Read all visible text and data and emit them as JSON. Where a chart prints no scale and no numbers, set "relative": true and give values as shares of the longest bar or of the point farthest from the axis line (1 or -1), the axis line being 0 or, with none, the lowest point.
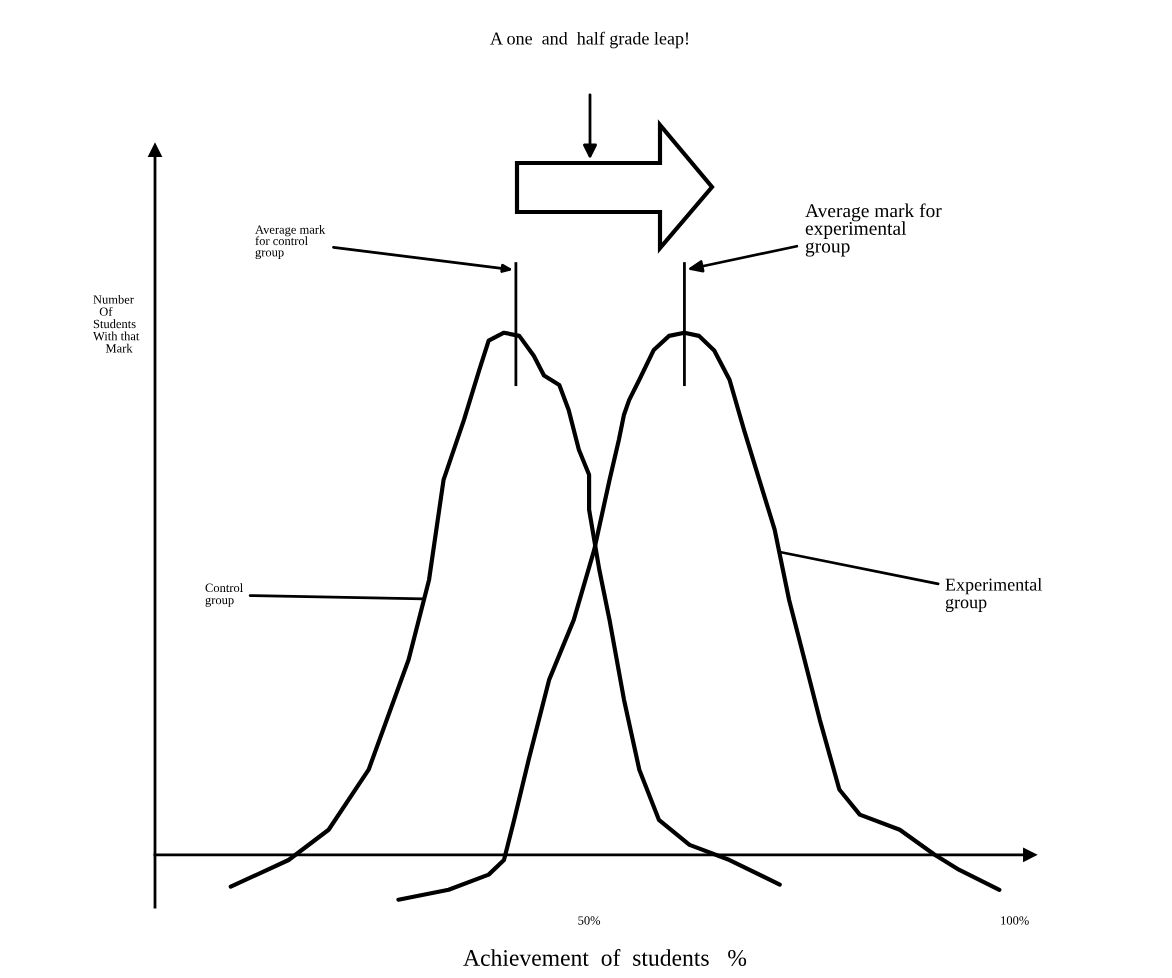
{
  "chart_data": {
    "type": "line",
    "relative": true,
    "title": "A one  and  half grade leap!",
    "xlabel": "Achievement  of  students   %",
    "ylabel": "Number\n  Of\nStudents\nWith that\n    Mark",
    "xlim": [
      -1,
      101.8
    ],
    "xticks": [
      {
        "value": 50,
        "label": "50%"
      },
      {
        "value": 100,
        "label": "100%"
      }
    ],
    "series": [
      {
        "color": "#000000",
        "x": [
          7.9,
          14.7,
          19.4,
          24.1,
          28.8,
          31.2,
          32.9,
          35.3,
          37.1,
          38.2,
          40.0,
          41.8,
          43.5,
          44.7,
          46.5,
          47.6,
          48.8,
          50.0,
          50.0,
          51.2,
          52.4,
          54.1,
          55.9,
          58.2,
          61.8,
          66.5,
          72.4
        ],
        "values": [
          -0.061,
          -0.01,
          0.048,
          0.163,
          0.374,
          0.527,
          0.718,
          0.833,
          0.929,
          0.985,
          1.0,
          0.994,
          0.956,
          0.918,
          0.9,
          0.852,
          0.776,
          0.728,
          0.661,
          0.546,
          0.45,
          0.297,
          0.163,
          0.067,
          0.019,
          -0.01,
          -0.057
        ]
      },
      {
        "color": "#000000",
        "x": [
          27.6,
          33.5,
          38.2,
          40.0,
          41.2,
          42.9,
          45.3,
          48.2,
          50.6,
          52.4,
          53.5,
          54.1,
          54.7,
          55.9,
          57.6,
          59.4,
          61.2,
          62.9,
          64.7,
          66.5,
          68.2,
          70.0,
          71.8,
          73.5,
          75.3,
          77.1,
          79.4,
          81.8,
          86.5,
          90.6,
          93.5,
          98.2
        ],
        "values": [
          -0.086,
          -0.067,
          -0.038,
          -0.01,
          0.067,
          0.182,
          0.335,
          0.45,
          0.584,
          0.718,
          0.795,
          0.843,
          0.871,
          0.91,
          0.967,
          0.994,
          1.0,
          0.994,
          0.966,
          0.91,
          0.814,
          0.718,
          0.623,
          0.488,
          0.374,
          0.259,
          0.125,
          0.077,
          0.048,
          0.0,
          -0.029,
          -0.067
        ]
      }
    ],
    "ref_lines": [
      {
        "axis": "x",
        "value": 41.4,
        "label": "Average mark\nfor control\ngroup"
      },
      {
        "axis": "x",
        "value": 61.2,
        "label": "Average mark for\nexperimental\ngroup"
      }
    ],
    "annotations": [
      {
        "text": "Control\ngroup",
        "x": 30.6,
        "y": 0.49
      },
      {
        "text": "Experimental\ngroup",
        "x": 72.4,
        "y": 0.58
      }
    ]
  }
}
